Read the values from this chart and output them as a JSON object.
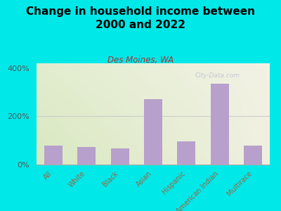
{
  "title": "Change in household income between\n2000 and 2022",
  "subtitle": "Des Moines, WA",
  "categories": [
    "All",
    "White",
    "Black",
    "Asian",
    "Hispanic",
    "American Indian",
    "Multirace"
  ],
  "values": [
    80,
    73,
    68,
    270,
    95,
    335,
    78
  ],
  "bar_color": "#b8a0cc",
  "background_outer": "#00e8e8",
  "background_inner_left": "#d8e8c0",
  "background_inner_right": "#f0f0e0",
  "title_fontsize": 11,
  "subtitle_fontsize": 8.5,
  "subtitle_color": "#b03030",
  "title_color": "#000000",
  "ylabel_values": [
    0,
    200,
    400
  ],
  "ylim": [
    0,
    420
  ],
  "watermark": "City-Data.com",
  "axis_label_color": "#996644",
  "ytick_color": "#555555",
  "grid_color": "#cccccc"
}
